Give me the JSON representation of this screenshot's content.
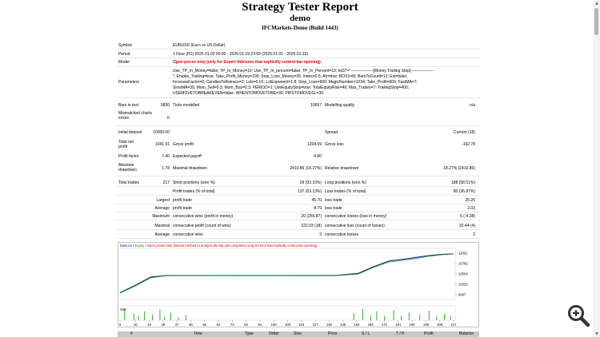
{
  "header": {
    "title": "Strategy Tester Report",
    "subtitle": "demo",
    "server": "IFCMarkets-Demo (Build 1443)"
  },
  "info": [
    {
      "label": "Symbol",
      "value": "EURUSD (Euro vs US Dollar)"
    },
    {
      "label": "Period",
      "value": "1 Hour (H1) 2025.01.02 00:00 - 2025.01.19 23:59 (2025.01.01 - 2025.01.20)"
    },
    {
      "label": "Model",
      "value": "Open prices only (only for Expert Advisors that explicitly control bar opening)"
    }
  ],
  "parameters": {
    "label": "Parameters",
    "lines": [
      "Use_TP_In_Money=false; TP_In_Money=10; Use_TP_In_percent=false; TP_In_Percent=10; txt37=\"-----------------[Money Trailing Stop]-----------------",
      "\"; Enable_Trailing=true; Take_Profit_Money=100; Stop_Loss_Money=35; index=0.5; Atr=true; BOX1=6t; BarsToCount=13; Ext=false;",
      "IncreaseFactor=0; CandlesToRetrace=3; Lots=0.01; LotExponent=1.8; Stop_Loss=600; MagicNumber=1234; Take_Profit=600; FastMA=7;",
      "SlowMA=30; Mom_Sell=0.3; Mom_Buy=0.3; PERIOD=1; UseEquityStop=true; TotalEquityRisk=40; Max_Trades=7; TrailingStop=400;",
      "USEMOVETOBREAKEVEN=false; WHENTOMOVETOBE=30; PIPSTOMOVESL=30;"
    ]
  },
  "bars": {
    "bars_label": "Bars in test",
    "bars_value": "5830",
    "ticks_label": "Ticks modelled",
    "ticks_value": "10657",
    "quality_label": "Modelling quality",
    "quality_value": "n/a"
  },
  "mismatch": {
    "label": "Mismatched charts errors",
    "value": "0"
  },
  "deposit": {
    "label": "Initial deposit",
    "value": "10000.00",
    "spread_label": "Spread",
    "spread_value": "Current (18)"
  },
  "profit": {
    "net_label": "Total net profit",
    "net_value": "1041.91",
    "gross_profit_label": "Gross profit",
    "gross_profit_value": "1204.69",
    "gross_loss_label": "Gross loss",
    "gross_loss_value": "-162.78"
  },
  "factor": {
    "pf_label": "Profit factor",
    "pf_value": "7.40",
    "ep_label": "Expected payoff",
    "ep_value": "4.80"
  },
  "drawdown": {
    "abs_label": "Absolute drawdown",
    "abs_value": "1.78",
    "max_label": "Maximal drawdown",
    "max_value": "2410.86 (18.27%)",
    "rel_label": "Relative drawdown",
    "rel_value": "18.27% (2410.86)"
  },
  "trades": [
    {
      "c1": "Total trades",
      "v1": "217",
      "c2": "Short positions (won %)",
      "v2": "29 (93.10%)",
      "c3": "Long positions (won %)",
      "v3": "188 (58.51%)"
    },
    {
      "c1": "",
      "v1": "",
      "c2": "Profit trades (% of total)",
      "v2": "137 (63.13%)",
      "c3": "Loss trades (% of total)",
      "v3": "80 (36.87%)"
    },
    {
      "c1": "Largest",
      "v1": "",
      "c2": "profit trade",
      "v2": "45.70",
      "c3": "loss trade",
      "v3": "25.26"
    },
    {
      "c1": "Average",
      "v1": "",
      "c2": "profit trade",
      "v2": "8.79",
      "c3": "loss trade",
      "v3": "2.03"
    },
    {
      "c1": "Maximum",
      "v1": "",
      "c2": "consecutive wins (profit in money)",
      "v2": "20 (255.87)",
      "c3": "consecutive losses (loss in money)",
      "v3": "6 (-4.38)"
    },
    {
      "c1": "Maximal",
      "v1": "",
      "c2": "consecutive profit (count of wins)",
      "v2": "322.03 (18)",
      "c3": "consecutive loss (count of losses)",
      "v3": "32.44 (4)"
    },
    {
      "c1": "Average",
      "v1": "",
      "c2": "consecutive wins",
      "v2": "3",
      "c3": "consecutive losses",
      "v3": "2"
    }
  ],
  "chart": {
    "legend_balance": "Balance",
    "legend_equity": "Equity",
    "legend_note": "Open prices only (fastest method to analyze the bar just completed, only for EAs that explicitly control bar opening)",
    "size_label": "Size",
    "balance_color": "#1f1fa0",
    "equity_color": "#00a000"
  },
  "chart_data": {
    "type": "line",
    "title": "",
    "y_ticks": [
      "11061",
      "10782",
      "10504",
      "10225",
      "9947"
    ],
    "x_ticks": [
      "0",
      "10",
      "19",
      "28",
      "37",
      "46",
      "55",
      "64",
      "73",
      "82",
      "91",
      "100",
      "109",
      "118",
      "127",
      "136",
      "145",
      "154",
      "163",
      "172",
      "181",
      "190",
      "199",
      "208",
      "217"
    ],
    "xlim": [
      0,
      217
    ],
    "ylim": [
      9947,
      11061
    ],
    "series": [
      {
        "name": "Balance",
        "x": [
          0,
          10,
          20,
          30,
          40,
          140,
          155,
          165,
          175,
          190,
          200,
          210,
          217
        ],
        "y": [
          10000,
          10200,
          10420,
          10460,
          10460,
          10460,
          10520,
          10700,
          10850,
          10930,
          10990,
          11030,
          11042
        ]
      },
      {
        "name": "Equity",
        "x": [
          0,
          10,
          20,
          30,
          40,
          140,
          155,
          165,
          175,
          190,
          200,
          210,
          217
        ],
        "y": [
          9990,
          10180,
          10400,
          10455,
          10458,
          10455,
          10500,
          10680,
          10820,
          10900,
          10970,
          11020,
          11040
        ]
      }
    ],
    "size_bars": [
      {
        "x": 3,
        "h": 0.9
      },
      {
        "x": 9,
        "h": 0.5
      },
      {
        "x": 12,
        "h": 0.35
      },
      {
        "x": 16,
        "h": 0.7
      },
      {
        "x": 21,
        "h": 0.45
      },
      {
        "x": 26,
        "h": 0.85
      },
      {
        "x": 29,
        "h": 0.3
      },
      {
        "x": 33,
        "h": 0.6
      },
      {
        "x": 38,
        "h": 0.25
      },
      {
        "x": 43,
        "h": 0.4
      },
      {
        "x": 152,
        "h": 0.55
      },
      {
        "x": 158,
        "h": 0.9
      },
      {
        "x": 163,
        "h": 0.4
      },
      {
        "x": 167,
        "h": 0.7
      },
      {
        "x": 172,
        "h": 0.3
      },
      {
        "x": 178,
        "h": 0.8
      },
      {
        "x": 183,
        "h": 0.35
      },
      {
        "x": 188,
        "h": 0.6
      },
      {
        "x": 195,
        "h": 0.45
      },
      {
        "x": 201,
        "h": 0.75
      },
      {
        "x": 206,
        "h": 0.3
      },
      {
        "x": 211,
        "h": 0.5
      },
      {
        "x": 215,
        "h": 0.35
      }
    ]
  },
  "table_header": [
    "#",
    "Time",
    "Type",
    "Order",
    "Size",
    "Price",
    "S / L",
    "T / P",
    "Profit",
    "Balance"
  ]
}
